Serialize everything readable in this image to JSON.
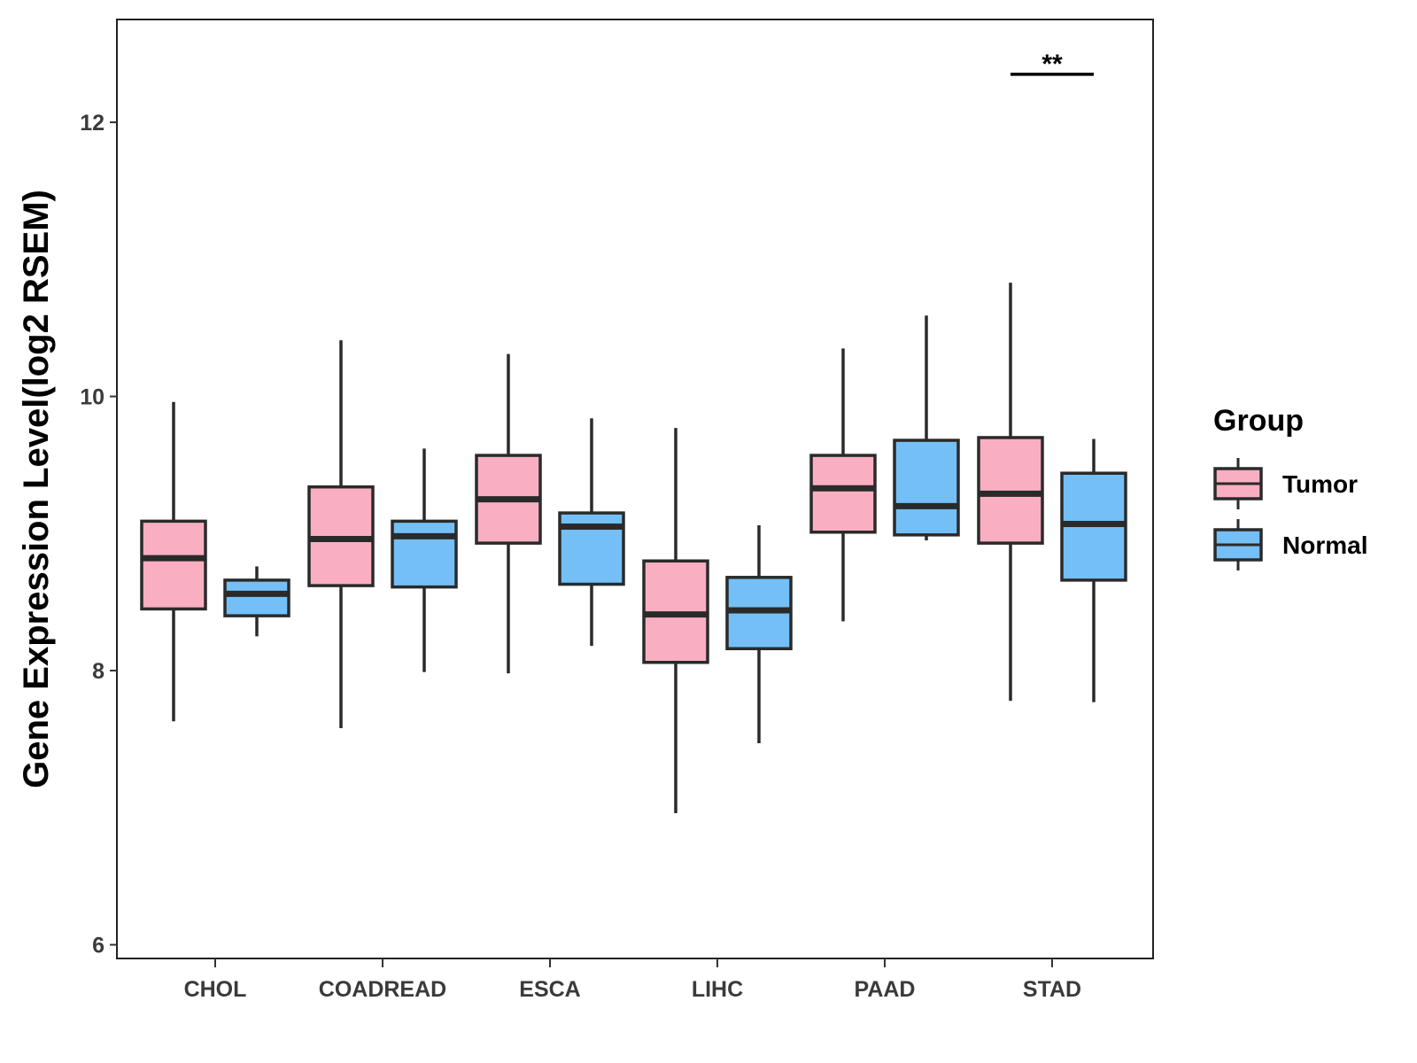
{
  "chart_data": {
    "type": "box",
    "title": "",
    "xlabel": "",
    "ylabel": "Gene Expression Level(log2 RSEM)",
    "ylim": [
      5.9,
      12.75
    ],
    "yticks": [
      6,
      8,
      10,
      12
    ],
    "grid": false,
    "categories": [
      "CHOL",
      "COADREAD",
      "ESCA",
      "LIHC",
      "PAAD",
      "STAD"
    ],
    "legend": {
      "title": "Group",
      "placement": "right",
      "entries": [
        {
          "name": "Tumor",
          "color": "#F9AFC1"
        },
        {
          "name": "Normal",
          "color": "#74BFF5"
        }
      ]
    },
    "series": [
      {
        "name": "Tumor",
        "color": "#F9AFC1",
        "boxes": [
          {
            "category": "CHOL",
            "min": 7.63,
            "q1": 8.45,
            "median": 8.82,
            "q3": 9.09,
            "max": 9.96
          },
          {
            "category": "COADREAD",
            "min": 7.58,
            "q1": 8.62,
            "median": 8.96,
            "q3": 9.34,
            "max": 10.41
          },
          {
            "category": "ESCA",
            "min": 7.98,
            "q1": 8.93,
            "median": 9.25,
            "q3": 9.57,
            "max": 10.31
          },
          {
            "category": "LIHC",
            "min": 6.96,
            "q1": 8.06,
            "median": 8.41,
            "q3": 8.8,
            "max": 9.77
          },
          {
            "category": "PAAD",
            "min": 8.36,
            "q1": 9.01,
            "median": 9.33,
            "q3": 9.57,
            "max": 10.35
          },
          {
            "category": "STAD",
            "min": 7.78,
            "q1": 8.93,
            "median": 9.29,
            "q3": 9.7,
            "max": 10.83
          }
        ]
      },
      {
        "name": "Normal",
        "color": "#74BFF5",
        "boxes": [
          {
            "category": "CHOL",
            "min": 8.25,
            "q1": 8.4,
            "median": 8.56,
            "q3": 8.66,
            "max": 8.76
          },
          {
            "category": "COADREAD",
            "min": 7.99,
            "q1": 8.61,
            "median": 8.98,
            "q3": 9.09,
            "max": 9.62
          },
          {
            "category": "ESCA",
            "min": 8.18,
            "q1": 8.63,
            "median": 9.05,
            "q3": 9.15,
            "max": 9.84
          },
          {
            "category": "LIHC",
            "min": 7.47,
            "q1": 8.16,
            "median": 8.44,
            "q3": 8.68,
            "max": 9.06
          },
          {
            "category": "PAAD",
            "min": 8.95,
            "q1": 8.99,
            "median": 9.2,
            "q3": 9.68,
            "max": 10.59
          },
          {
            "category": "STAD",
            "min": 7.77,
            "q1": 8.66,
            "median": 9.07,
            "q3": 9.44,
            "max": 9.69
          }
        ]
      }
    ],
    "annotations": [
      {
        "category": "STAD",
        "text": "**",
        "y": 12.35
      }
    ]
  }
}
